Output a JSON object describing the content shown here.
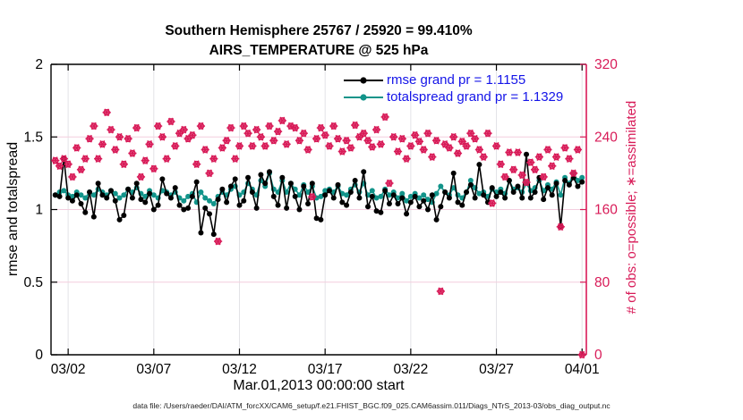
{
  "title": {
    "line1": "Southern Hemisphere 25767 / 25920 = 99.410%",
    "line2": "AIRS_TEMPERATURE @ 525 hPa"
  },
  "legend": {
    "text_color": "#1414e8",
    "items": [
      {
        "label": "rmse grand pr = 1.1155",
        "color": "#000000"
      },
      {
        "label": "totalspread grand pr = 1.1329",
        "color": "#12948a"
      }
    ]
  },
  "axes": {
    "left_label": "rmse and totalspread",
    "right_label": "# of obs: o=possible; ∗=assimilated",
    "x_label": "Mar.01,2013 00:00:00 start"
  },
  "footer": {
    "text": "data file: /Users/raeder/DAI/ATM_forcXX/CAM6_setup/f.e21.FHIST_BGC.f09_025.CAM6assim.011/Diags_NTrS_2013-03/obs_diag_output.nc"
  },
  "colors": {
    "rmse": "#000000",
    "totalspread": "#12948a",
    "obs": "#d81b58",
    "grid_vertical": "#e3e3e7",
    "grid_horizontal": "#f3cede",
    "spine": "#000000"
  },
  "chart_data": {
    "type": "line",
    "title": "Southern Hemisphere 25767 / 25920 = 99.410% | AIRS_TEMPERATURE @ 525 hPa",
    "x_axis": "time, 6-hourly bins starting Mar.01,2013 00:00:00",
    "x_range_days": [
      0,
      31.25
    ],
    "x_start_day": 0.25,
    "x_step_day": 0.25,
    "x_tick_days": [
      1,
      6,
      11,
      16,
      21,
      26,
      31
    ],
    "x_tick_labels": [
      "03/02",
      "03/07",
      "03/12",
      "03/17",
      "03/22",
      "03/27",
      "04/01"
    ],
    "left_range": [
      0,
      2
    ],
    "left_ticks": [
      0,
      0.5,
      1,
      1.5,
      2
    ],
    "left_tick_labels": [
      "0",
      "0.5",
      "1",
      "1.5",
      "2"
    ],
    "left_grid": [
      0.5,
      1,
      1.5
    ],
    "right_range": [
      0,
      320
    ],
    "right_ticks": [
      0,
      80,
      160,
      240,
      320
    ],
    "right_tick_labels": [
      "0",
      "80",
      "160",
      "240",
      "320"
    ],
    "grand_means": {
      "rmse": 1.1155,
      "totalspread": 1.1329
    },
    "series": [
      {
        "name": "rmse",
        "axis": "left",
        "values": [
          1.1,
          1.09,
          1.35,
          1.08,
          1.06,
          1.1,
          1.04,
          0.98,
          1.12,
          0.95,
          1.18,
          1.1,
          1.08,
          1.13,
          1.06,
          0.93,
          0.96,
          1.14,
          1.08,
          1.18,
          1.07,
          1.05,
          1.11,
          1.0,
          1.03,
          1.21,
          1.11,
          1.08,
          1.15,
          1.03,
          1.0,
          1.01,
          1.09,
          1.19,
          0.84,
          1.01,
          0.97,
          0.83,
          1.07,
          1.14,
          1.05,
          1.16,
          1.21,
          1.03,
          1.06,
          1.22,
          1.12,
          1.01,
          1.24,
          1.18,
          1.26,
          1.09,
          1.03,
          1.22,
          1.01,
          1.18,
          1.09,
          1.0,
          1.16,
          1.04,
          1.18,
          0.94,
          0.93,
          1.1,
          1.13,
          1.08,
          1.17,
          1.05,
          1.03,
          1.12,
          1.2,
          1.08,
          1.26,
          1.02,
          1.09,
          0.99,
          0.98,
          1.13,
          1.04,
          1.1,
          1.04,
          1.08,
          0.97,
          1.05,
          1.09,
          1.02,
          1.06,
          1.0,
          1.1,
          0.93,
          1.02,
          1.12,
          1.08,
          1.25,
          1.05,
          1.03,
          1.12,
          1.17,
          1.08,
          1.31,
          1.1,
          1.05,
          1.15,
          1.09,
          1.12,
          1.08,
          1.2,
          1.12,
          1.16,
          1.08,
          1.38,
          1.08,
          1.12,
          1.22,
          1.07,
          1.15,
          1.1,
          1.18,
          0.88,
          1.2,
          1.17,
          1.22,
          1.16,
          1.19
        ]
      },
      {
        "name": "totalspread",
        "axis": "left",
        "values": [
          1.1,
          1.12,
          1.13,
          1.1,
          1.09,
          1.12,
          1.1,
          1.08,
          1.12,
          1.1,
          1.14,
          1.12,
          1.1,
          1.13,
          1.11,
          1.08,
          1.1,
          1.14,
          1.12,
          1.15,
          1.11,
          1.09,
          1.13,
          1.1,
          1.08,
          1.13,
          1.12,
          1.1,
          1.12,
          1.08,
          1.06,
          1.09,
          1.11,
          1.05,
          1.12,
          1.08,
          1.06,
          1.04,
          1.09,
          1.12,
          1.1,
          1.14,
          1.16,
          1.1,
          1.12,
          1.18,
          1.14,
          1.1,
          1.2,
          1.16,
          1.25,
          1.14,
          1.12,
          1.2,
          1.12,
          1.18,
          1.14,
          1.1,
          1.17,
          1.12,
          1.16,
          1.08,
          1.09,
          1.13,
          1.14,
          1.12,
          1.16,
          1.11,
          1.1,
          1.14,
          1.17,
          1.12,
          1.18,
          1.1,
          1.13,
          1.08,
          1.09,
          1.14,
          1.1,
          1.12,
          1.08,
          1.11,
          1.06,
          1.09,
          1.11,
          1.08,
          1.1,
          1.07,
          1.05,
          1.11,
          1.16,
          1.12,
          1.1,
          1.15,
          1.1,
          1.08,
          1.12,
          1.2,
          1.15,
          1.11,
          1.12,
          1.09,
          1.14,
          1.12,
          1.14,
          1.11,
          1.2,
          1.14,
          1.15,
          1.12,
          1.18,
          1.13,
          1.15,
          1.2,
          1.13,
          1.17,
          1.14,
          1.19,
          1.1,
          1.22,
          1.18,
          1.25,
          1.2,
          1.22
        ]
      }
    ],
    "obs_counts": {
      "name": "# of obs (o=possible, ∗=assimilated, overlapping)",
      "axis": "right",
      "values": [
        214,
        208,
        216,
        210,
        196,
        228,
        204,
        216,
        238,
        252,
        216,
        232,
        267,
        248,
        226,
        240,
        210,
        238,
        222,
        250,
        196,
        214,
        232,
        205,
        252,
        240,
        216,
        257,
        230,
        244,
        248,
        238,
        242,
        210,
        252,
        226,
        200,
        216,
        125,
        228,
        236,
        250,
        216,
        230,
        252,
        244,
        230,
        248,
        240,
        230,
        252,
        236,
        246,
        258,
        232,
        252,
        250,
        236,
        244,
        226,
        174,
        238,
        250,
        242,
        230,
        252,
        238,
        224,
        236,
        228,
        253,
        240,
        244,
        236,
        229,
        248,
        232,
        262,
        189,
        240,
        224,
        238,
        216,
        230,
        242,
        235,
        226,
        244,
        218,
        236,
        70,
        232,
        228,
        240,
        222,
        235,
        230,
        244,
        238,
        226,
        218,
        244,
        167,
        230,
        210,
        196,
        223,
        204,
        223,
        198,
        190,
        212,
        204,
        218,
        196,
        226,
        208,
        218,
        141,
        228,
        216,
        200,
        226,
        0
      ]
    },
    "legend_position": "top-center-right, no box"
  }
}
